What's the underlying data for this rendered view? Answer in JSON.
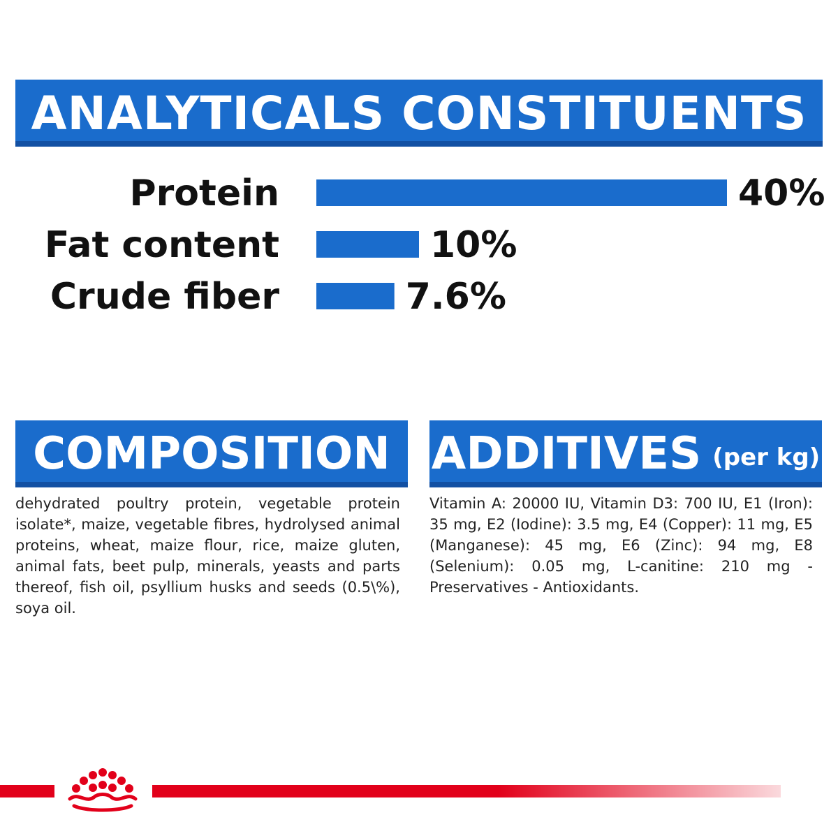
{
  "headings": {
    "analytics": "ANALYTICALS CONSTITUENTS",
    "composition": "COMPOSITION",
    "additives": "ADDITIVES",
    "additives_unit": "(per kg)"
  },
  "chart_data": {
    "type": "bar",
    "orientation": "horizontal",
    "title": "ANALYTICALS CONSTITUENTS",
    "categories": [
      "Protein",
      "Fat content",
      "Crude fiber"
    ],
    "values": [
      40,
      10,
      7.6
    ],
    "value_labels": [
      "40%",
      "10%",
      "7.6%"
    ],
    "unit": "%",
    "xlim": [
      0,
      40
    ],
    "grid": false,
    "bar_color": "#1a6ccc"
  },
  "composition_text": "dehydrated poultry protein, vegetable protein isolate*, maize, vegetable fibres, hydrolysed animal proteins, wheat, maize flour, rice, maize gluten, animal fats, beet pulp, minerals, yeasts and parts thereof, fish oil, psyllium husks and seeds (0.5\\%), soya oil.",
  "additives_text": "Vitamin A: 20000 IU, Vitamin D3: 700 IU, E1 (Iron): 35 mg, E2 (Iodine): 3.5 mg, E4 (Copper): 11 mg, E5 (Manganese): 45 mg, E6 (Zinc): 94 mg, E8 (Selenium): 0.05 mg, L-canitine: 210 mg - Preservatives - Antioxidants.",
  "colors": {
    "accent_blue": "#1a6ccc",
    "brand_red": "#e2001a"
  },
  "icons": {
    "logo": "royal-canin-crown-icon"
  }
}
